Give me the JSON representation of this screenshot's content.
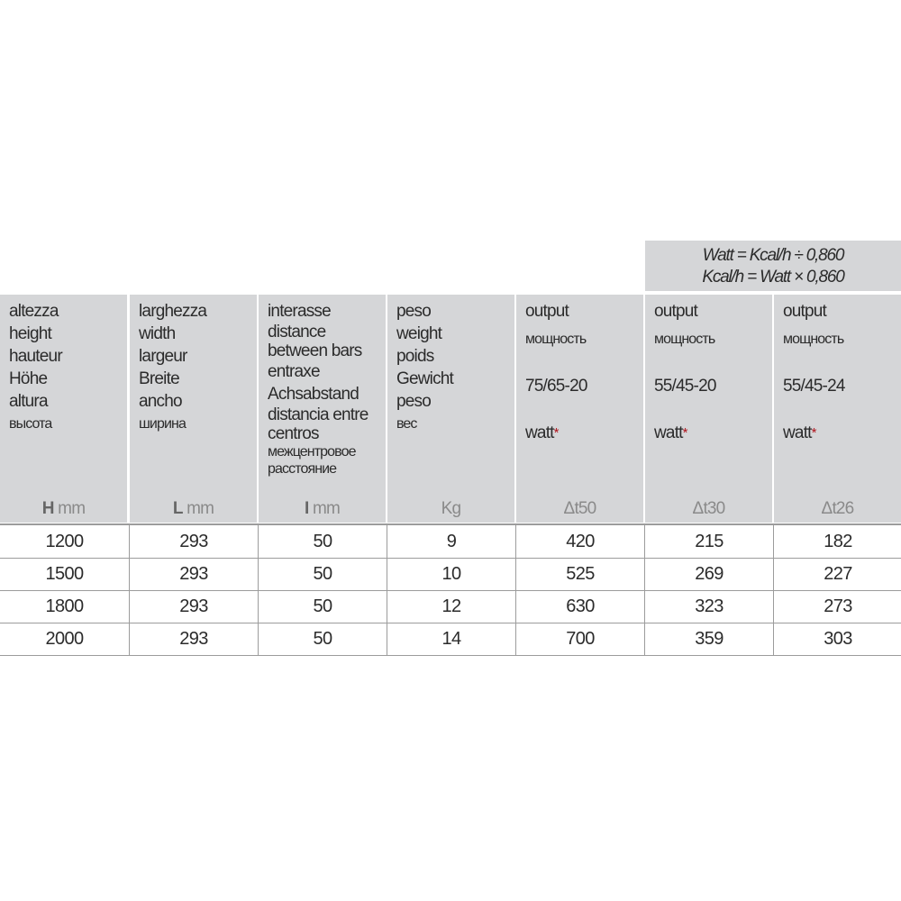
{
  "formula": {
    "line1": "Watt = Kcal/h ÷ 0,860",
    "line2": "Kcal/h = Watt × 0,860"
  },
  "columns": [
    {
      "labels": [
        "altezza",
        "height",
        "hauteur",
        "Höhe",
        "altura"
      ],
      "ru": [
        "высота"
      ],
      "unit_symbol": "H",
      "unit": "mm"
    },
    {
      "labels": [
        "larghezza",
        "width",
        "largeur",
        "Breite",
        "ancho"
      ],
      "ru": [
        "ширина"
      ],
      "unit_symbol": "L",
      "unit": "mm"
    },
    {
      "labels": [
        "interasse",
        "distance",
        "between bars",
        "entraxe",
        "Achsabstand",
        "distancia entre",
        "centros"
      ],
      "ru": [
        "межцентровое",
        "расстояние"
      ],
      "unit_symbol": "I",
      "unit": "mm"
    },
    {
      "labels": [
        "peso",
        "weight",
        "poids",
        "Gewicht",
        "peso"
      ],
      "ru": [
        "вес"
      ],
      "unit_symbol": "",
      "unit": "Kg"
    },
    {
      "label": "output",
      "ru": "мощность",
      "temps": "75/65-20",
      "watt": "watt",
      "star": "*",
      "unit": "Δt50"
    },
    {
      "label": "output",
      "ru": "мощность",
      "temps": "55/45-20",
      "watt": "watt",
      "star": "*",
      "unit": "Δt30"
    },
    {
      "label": "output",
      "ru": "мощность",
      "temps": "55/45-24",
      "watt": "watt",
      "star": "*",
      "unit": "Δt26"
    }
  ],
  "rows": [
    [
      "1200",
      "293",
      "50",
      "9",
      "420",
      "215",
      "182"
    ],
    [
      "1500",
      "293",
      "50",
      "10",
      "525",
      "269",
      "227"
    ],
    [
      "1800",
      "293",
      "50",
      "12",
      "630",
      "323",
      "273"
    ],
    [
      "2000",
      "293",
      "50",
      "14",
      "700",
      "359",
      "303"
    ]
  ],
  "colors": {
    "header_bg": "#d5d6d8",
    "star": "#b0121b",
    "rule": "#9c9c9c"
  }
}
